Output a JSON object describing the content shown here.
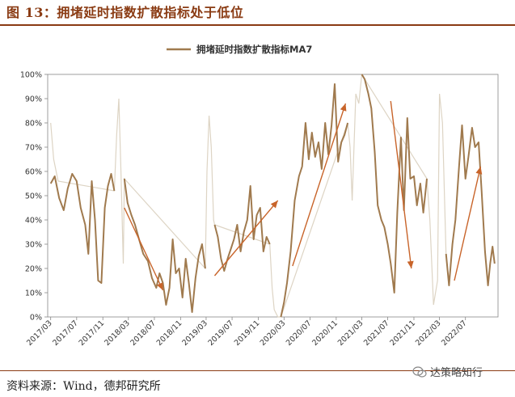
{
  "figure_title": "图 13：拥堵延时指数扩散指标处于低位",
  "source_text": "资料来源：Wind，德邦研究所",
  "watermark_text": "达策略知行",
  "colors": {
    "accent": "#8a3b13",
    "series": "#a07a4e",
    "ghost": "#ddd4c4",
    "arrow": "#c8642a"
  },
  "chart_data": {
    "type": "line",
    "legend_position": "top-center",
    "grid": false,
    "ylim": [
      0,
      100
    ],
    "y_ticks": [
      "0%",
      "10%",
      "20%",
      "30%",
      "40%",
      "50%",
      "60%",
      "70%",
      "80%",
      "90%",
      "100%"
    ],
    "x_ticks": [
      "2017/03",
      "2017/07",
      "2017/11",
      "2018/03",
      "2018/07",
      "2018/11",
      "2019/03",
      "2019/07",
      "2019/11",
      "2020/03",
      "2020/07",
      "2020/11",
      "2021/03",
      "2021/07",
      "2021/11",
      "2022/03",
      "2022/07"
    ],
    "series": [
      {
        "name": "拥堵延时指数扩散指标MA7",
        "points": [
          [
            "2017/03/01",
            55
          ],
          [
            "2017/03/20",
            58
          ],
          [
            "2017/04/10",
            49
          ],
          [
            "2017/05/01",
            44
          ],
          [
            "2017/05/20",
            53
          ],
          [
            "2017/06/10",
            59
          ],
          [
            "2017/07/01",
            56
          ],
          [
            "2017/07/20",
            45
          ],
          [
            "2017/08/10",
            38
          ],
          [
            "2017/08/25",
            26
          ],
          [
            "2017/09/10",
            56
          ],
          [
            "2017/09/25",
            40
          ],
          [
            "2017/10/10",
            15
          ],
          [
            "2017/10/25",
            14
          ],
          [
            "2017/11/10",
            45
          ],
          [
            "2017/11/25",
            54
          ],
          [
            "2017/12/10",
            59
          ],
          [
            "2017/12/25",
            52
          ],
          [
            "2018/01/15",
            null
          ],
          [
            "2018/02/10",
            57
          ],
          [
            "2018/02/25",
            47
          ],
          [
            "2018/03/15",
            42
          ],
          [
            "2018/04/01",
            38
          ],
          [
            "2018/04/20",
            32
          ],
          [
            "2018/05/10",
            26
          ],
          [
            "2018/06/01",
            23
          ],
          [
            "2018/06/20",
            16
          ],
          [
            "2018/07/10",
            12
          ],
          [
            "2018/07/25",
            18
          ],
          [
            "2018/08/10",
            14
          ],
          [
            "2018/08/25",
            5
          ],
          [
            "2018/09/10",
            12
          ],
          [
            "2018/09/25",
            32
          ],
          [
            "2018/10/10",
            18
          ],
          [
            "2018/10/25",
            20
          ],
          [
            "2018/11/10",
            8
          ],
          [
            "2018/11/25",
            24
          ],
          [
            "2018/12/10",
            14
          ],
          [
            "2018/12/25",
            2
          ],
          [
            "2019/01/10",
            16
          ],
          [
            "2019/01/25",
            25
          ],
          [
            "2019/02/10",
            30
          ],
          [
            "2019/02/25",
            20
          ],
          [
            "2019/03/15",
            null
          ],
          [
            "2019/04/10",
            38
          ],
          [
            "2019/04/25",
            33
          ],
          [
            "2019/05/10",
            24
          ],
          [
            "2019/05/25",
            19
          ],
          [
            "2019/06/10",
            24
          ],
          [
            "2019/06/25",
            28
          ],
          [
            "2019/07/10",
            32
          ],
          [
            "2019/07/25",
            38
          ],
          [
            "2019/08/10",
            27
          ],
          [
            "2019/08/25",
            35
          ],
          [
            "2019/09/10",
            40
          ],
          [
            "2019/09/25",
            54
          ],
          [
            "2019/10/10",
            32
          ],
          [
            "2019/10/25",
            42
          ],
          [
            "2019/11/10",
            45
          ],
          [
            "2019/11/25",
            27
          ],
          [
            "2019/12/10",
            33
          ],
          [
            "2019/12/25",
            30
          ],
          [
            "2020/01/15",
            null
          ],
          [
            "2020/02/15",
            0
          ],
          [
            "2020/03/01",
            6
          ],
          [
            "2020/03/15",
            14
          ],
          [
            "2020/04/01",
            27
          ],
          [
            "2020/04/20",
            48
          ],
          [
            "2020/05/10",
            58
          ],
          [
            "2020/05/25",
            62
          ],
          [
            "2020/06/10",
            80
          ],
          [
            "2020/06/25",
            65
          ],
          [
            "2020/07/10",
            76
          ],
          [
            "2020/07/25",
            66
          ],
          [
            "2020/08/10",
            72
          ],
          [
            "2020/08/25",
            61
          ],
          [
            "2020/09/10",
            80
          ],
          [
            "2020/09/25",
            67
          ],
          [
            "2020/10/10",
            79
          ],
          [
            "2020/10/25",
            96
          ],
          [
            "2020/11/10",
            64
          ],
          [
            "2020/11/25",
            72
          ],
          [
            "2020/12/10",
            75
          ],
          [
            "2020/12/25",
            80
          ],
          [
            "2021/01/15",
            null
          ],
          [
            "2021/03/01",
            100
          ],
          [
            "2021/03/15",
            98
          ],
          [
            "2021/04/01",
            92
          ],
          [
            "2021/04/15",
            86
          ],
          [
            "2021/05/01",
            68
          ],
          [
            "2021/05/15",
            46
          ],
          [
            "2021/06/01",
            40
          ],
          [
            "2021/06/15",
            37
          ],
          [
            "2021/07/01",
            30
          ],
          [
            "2021/07/15",
            22
          ],
          [
            "2021/08/01",
            10
          ],
          [
            "2021/08/15",
            43
          ],
          [
            "2021/09/01",
            74
          ],
          [
            "2021/09/15",
            44
          ],
          [
            "2021/10/01",
            82
          ],
          [
            "2021/10/15",
            57
          ],
          [
            "2021/11/01",
            58
          ],
          [
            "2021/11/15",
            46
          ],
          [
            "2021/12/01",
            55
          ],
          [
            "2021/12/15",
            43
          ],
          [
            "2022/01/01",
            57
          ],
          [
            "2022/02/01",
            null
          ],
          [
            "2022/04/01",
            26
          ],
          [
            "2022/04/15",
            13
          ],
          [
            "2022/05/01",
            30
          ],
          [
            "2022/05/15",
            40
          ],
          [
            "2022/06/01",
            62
          ],
          [
            "2022/06/15",
            79
          ],
          [
            "2022/07/01",
            57
          ],
          [
            "2022/07/15",
            66
          ],
          [
            "2022/08/01",
            78
          ],
          [
            "2022/08/15",
            70
          ],
          [
            "2022/09/01",
            72
          ],
          [
            "2022/09/15",
            52
          ],
          [
            "2022/10/01",
            27
          ],
          [
            "2022/10/15",
            13
          ],
          [
            "2022/10/25",
            22
          ],
          [
            "2022/11/05",
            29
          ],
          [
            "2022/11/15",
            22
          ]
        ]
      }
    ],
    "background_trace": [
      [
        "2017/03/01",
        80
      ],
      [
        "2017/03/15",
        65
      ],
      [
        "2017/04/05",
        56
      ],
      [
        "2017/12/25",
        52
      ],
      [
        "2018/01/05",
        75
      ],
      [
        "2018/01/15",
        90
      ],
      [
        "2018/01/25",
        60
      ],
      [
        "2018/02/05",
        22
      ],
      [
        "2018/02/10",
        57
      ],
      [
        "2019/02/25",
        20
      ],
      [
        "2019/03/05",
        60
      ],
      [
        "2019/03/15",
        83
      ],
      [
        "2019/03/25",
        70
      ],
      [
        "2019/04/05",
        40
      ],
      [
        "2019/04/10",
        38
      ],
      [
        "2019/12/25",
        30
      ],
      [
        "2020/01/05",
        12
      ],
      [
        "2020/01/15",
        3
      ],
      [
        "2020/02/01",
        0
      ],
      [
        "2020/02/15",
        0
      ],
      [
        "2020/12/25",
        80
      ],
      [
        "2021/01/05",
        70
      ],
      [
        "2021/01/15",
        48
      ],
      [
        "2021/02/01",
        92
      ],
      [
        "2021/02/15",
        88
      ],
      [
        "2021/03/01",
        100
      ],
      [
        "2022/01/01",
        57
      ],
      [
        "2022/01/15",
        40
      ],
      [
        "2022/02/01",
        5
      ],
      [
        "2022/02/20",
        15
      ],
      [
        "2022/03/01",
        92
      ],
      [
        "2022/03/15",
        80
      ],
      [
        "2022/04/01",
        26
      ]
    ],
    "arrows": [
      {
        "from": [
          "2018/02/10",
          45
        ],
        "to": [
          "2018/08/10",
          11
        ]
      },
      {
        "from": [
          "2019/04/10",
          17
        ],
        "to": [
          "2020/02/01",
          48
        ]
      },
      {
        "from": [
          "2020/04/10",
          21
        ],
        "to": [
          "2020/12/15",
          88
        ]
      },
      {
        "from": [
          "2021/07/15",
          89
        ],
        "to": [
          "2021/10/20",
          20
        ]
      },
      {
        "from": [
          "2022/05/10",
          15
        ],
        "to": [
          "2022/09/10",
          62
        ]
      }
    ]
  }
}
